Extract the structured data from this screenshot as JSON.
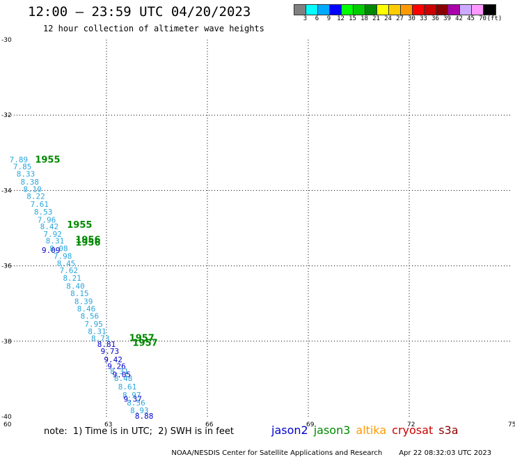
{
  "header": {
    "title": "12:00 – 23:59 UTC 04/20/2023",
    "subtitle": "12 hour collection of altimeter wave heights"
  },
  "colorbar": {
    "colors": [
      "#808080",
      "#00ffff",
      "#00aaff",
      "#0000ff",
      "#00ff00",
      "#00cc00",
      "#008800",
      "#ffff00",
      "#ffcc00",
      "#ff9900",
      "#ff0000",
      "#cc0000",
      "#880000",
      "#aa00aa",
      "#ccaaff",
      "#ff99ff",
      "#000000"
    ],
    "labels": [
      "3",
      "6",
      "9",
      "12",
      "15",
      "18",
      "21",
      "24",
      "27",
      "30",
      "33",
      "36",
      "39",
      "42",
      "45",
      "70",
      "(ft)"
    ]
  },
  "map": {
    "lat_labels": [
      "-30",
      "-32",
      "-34",
      "-36",
      "-38",
      "-40"
    ],
    "lon_labels": [
      "60",
      "63",
      "66",
      "69",
      "72",
      "75"
    ]
  },
  "chart_data": {
    "type": "scatter",
    "xlim": [
      60,
      75
    ],
    "ylim": [
      -40,
      -30
    ],
    "grid": true,
    "series": [
      {
        "color": "#2aa6dd",
        "points": [
          {
            "lon": 60.39,
            "lat": -33.2,
            "v": "7.89"
          },
          {
            "lon": 60.5,
            "lat": -33.38,
            "v": "7.85"
          },
          {
            "lon": 60.6,
            "lat": -33.58,
            "v": "8.33"
          },
          {
            "lon": 60.72,
            "lat": -33.79,
            "v": "8.38"
          },
          {
            "lon": 60.8,
            "lat": -33.98,
            "v": "8.10"
          },
          {
            "lon": 60.9,
            "lat": -34.17,
            "v": "8.22"
          },
          {
            "lon": 61.01,
            "lat": -34.38,
            "v": "7.61"
          },
          {
            "lon": 61.12,
            "lat": -34.58,
            "v": "8.53"
          },
          {
            "lon": 61.22,
            "lat": -34.8,
            "v": "7.96"
          },
          {
            "lon": 61.3,
            "lat": -34.97,
            "v": "8.42"
          },
          {
            "lon": 61.4,
            "lat": -35.18,
            "v": "7.92"
          },
          {
            "lon": 61.47,
            "lat": -35.35,
            "v": "8.31"
          },
          {
            "lon": 61.58,
            "lat": -35.55,
            "v": "8.08"
          },
          {
            "lon": 61.7,
            "lat": -35.76,
            "v": "7.98"
          },
          {
            "lon": 61.8,
            "lat": -35.95,
            "v": "8.45"
          },
          {
            "lon": 61.88,
            "lat": -36.14,
            "v": "7.62"
          },
          {
            "lon": 61.98,
            "lat": -36.34,
            "v": "8.21"
          },
          {
            "lon": 62.08,
            "lat": -36.55,
            "v": "8.40"
          },
          {
            "lon": 62.2,
            "lat": -36.75,
            "v": "8.15"
          },
          {
            "lon": 62.32,
            "lat": -36.96,
            "v": "8.39"
          },
          {
            "lon": 62.4,
            "lat": -37.15,
            "v": "8.46"
          },
          {
            "lon": 62.5,
            "lat": -37.35,
            "v": "8.56"
          },
          {
            "lon": 62.62,
            "lat": -37.56,
            "v": "7.95"
          },
          {
            "lon": 62.72,
            "lat": -37.75,
            "v": "8.31"
          },
          {
            "lon": 62.82,
            "lat": -37.94,
            "v": "8.73"
          },
          {
            "lon": 63.38,
            "lat": -38.82,
            "v": "8.31"
          },
          {
            "lon": 63.5,
            "lat": -39.0,
            "v": "8.48"
          },
          {
            "lon": 63.62,
            "lat": -39.22,
            "v": "8.61"
          },
          {
            "lon": 63.75,
            "lat": -39.45,
            "v": "8.97"
          },
          {
            "lon": 63.88,
            "lat": -39.65,
            "v": "8.56"
          },
          {
            "lon": 63.98,
            "lat": -39.85,
            "v": "8.93"
          }
        ]
      },
      {
        "color": "#0000cc",
        "points": [
          {
            "lon": 61.35,
            "lat": -35.6,
            "v": "9.09"
          },
          {
            "lon": 63.0,
            "lat": -38.1,
            "v": "8.81"
          },
          {
            "lon": 63.1,
            "lat": -38.28,
            "v": "9.73"
          },
          {
            "lon": 63.2,
            "lat": -38.5,
            "v": "9.42"
          },
          {
            "lon": 63.3,
            "lat": -38.68,
            "v": "9.26"
          },
          {
            "lon": 63.45,
            "lat": -38.9,
            "v": "9.05"
          },
          {
            "lon": 63.78,
            "lat": -39.55,
            "v": "9.37"
          },
          {
            "lon": 64.12,
            "lat": -40.0,
            "v": "8.88"
          }
        ]
      }
    ],
    "pass_times": [
      {
        "lon": 61.25,
        "lat": -33.2,
        "v": "1955"
      },
      {
        "lon": 62.2,
        "lat": -34.93,
        "v": "1955"
      },
      {
        "lon": 62.45,
        "lat": -35.32,
        "v": "1956"
      },
      {
        "lon": 62.45,
        "lat": -35.4,
        "v": "1956"
      },
      {
        "lon": 64.05,
        "lat": -37.93,
        "v": "1957"
      },
      {
        "lon": 64.15,
        "lat": -38.06,
        "v": "1957"
      }
    ]
  },
  "note": "note:  1) Time is in UTC;  2) SWH is in feet",
  "legend": [
    {
      "name": "jason2",
      "color": "#0000cc"
    },
    {
      "name": "jason3",
      "color": "#008800"
    },
    {
      "name": "altika",
      "color": "#ff9900"
    },
    {
      "name": "cryosat",
      "color": "#cc0000"
    },
    {
      "name": "s3a",
      "color": "#880000"
    }
  ],
  "footer": {
    "source": "NOAA/NESDIS Center for Satellite Applications and Research",
    "timestamp": "Apr 22 08:32:03 UTC 2023"
  }
}
